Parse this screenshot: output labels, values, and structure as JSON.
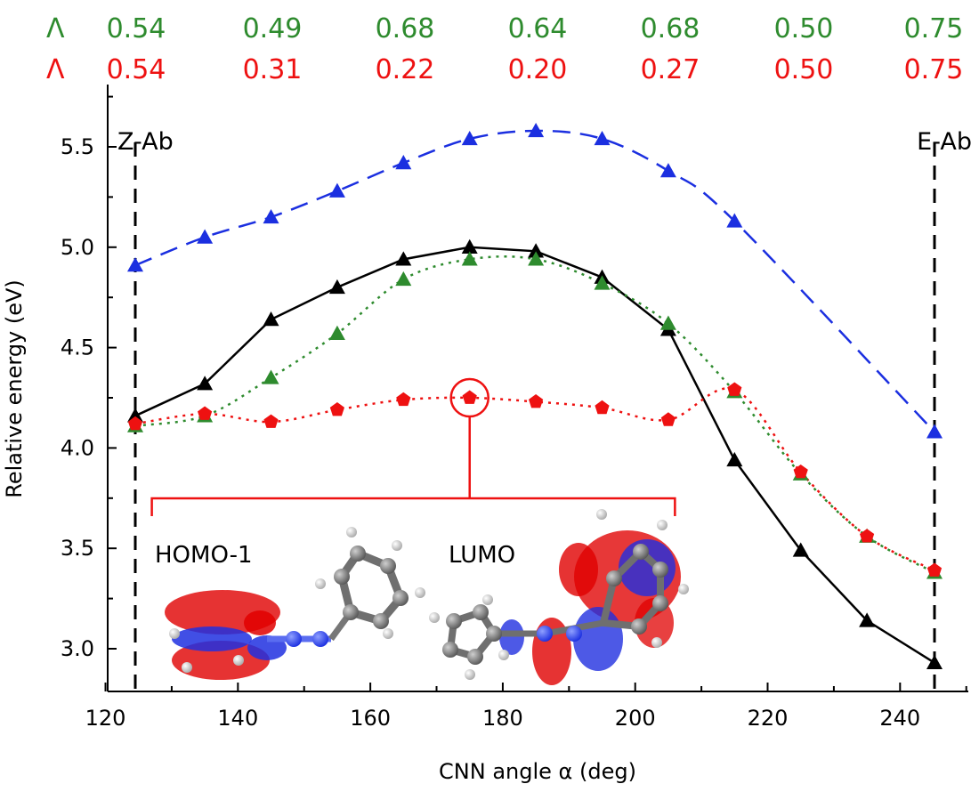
{
  "chart_data": {
    "type": "line",
    "xlabel": "CNN angle α (deg)",
    "ylabel": "Relative energy (eV)",
    "xlim": [
      120,
      250
    ],
    "ylim": [
      2.8,
      5.75
    ],
    "xticks": [
      120,
      140,
      160,
      180,
      200,
      220,
      240
    ],
    "yticks": [
      3.0,
      3.5,
      4.0,
      4.5,
      5.0,
      5.5
    ],
    "x_minor_step": 10,
    "y_minor_step": 0.25,
    "vlines": [
      {
        "x": 124.5,
        "label": "Z-Ab"
      },
      {
        "x": 245.2,
        "label": "E-Ab"
      }
    ],
    "lambda_rows": [
      {
        "symbol": "Λ",
        "color": "#2e8b2e",
        "values": [
          "0.54",
          "0.49",
          "0.68",
          "0.64",
          "0.68",
          "0.50",
          "0.75"
        ]
      },
      {
        "symbol": "Λ",
        "color": "#ee1111",
        "values": [
          "0.54",
          "0.31",
          "0.22",
          "0.20",
          "0.27",
          "0.50",
          "0.75"
        ]
      }
    ],
    "series": [
      {
        "name": "blue",
        "color": "#1b2fe0",
        "marker": "triangle",
        "linestyle": "dashed",
        "x": [
          124.5,
          135,
          145,
          155,
          165,
          175,
          185,
          195,
          205,
          215,
          245.2
        ],
        "y": [
          4.91,
          5.05,
          5.15,
          5.28,
          5.42,
          5.54,
          5.58,
          5.54,
          5.38,
          5.13,
          4.08
        ]
      },
      {
        "name": "black",
        "color": "#000000",
        "marker": "triangle",
        "linestyle": "solid",
        "x": [
          124.5,
          135,
          145,
          155,
          165,
          175,
          185,
          195,
          205,
          215,
          225,
          235,
          245.2
        ],
        "y": [
          4.16,
          4.32,
          4.64,
          4.8,
          4.94,
          5.0,
          4.98,
          4.85,
          4.59,
          3.94,
          3.49,
          3.14,
          2.93
        ]
      },
      {
        "name": "green",
        "color": "#2e8b2e",
        "marker": "triangle",
        "linestyle": "dotted",
        "x": [
          124.5,
          135,
          145,
          155,
          165,
          175,
          185,
          195,
          205,
          215,
          225,
          235,
          245.2
        ],
        "y": [
          4.11,
          4.16,
          4.35,
          4.57,
          4.84,
          4.94,
          4.94,
          4.82,
          4.62,
          4.28,
          3.87,
          3.56,
          3.38
        ]
      },
      {
        "name": "red",
        "color": "#ee1111",
        "marker": "pentagon",
        "linestyle": "dotted",
        "x": [
          124.5,
          135,
          145,
          155,
          165,
          175,
          185,
          195,
          205,
          215,
          225,
          235,
          245.2
        ],
        "y": [
          4.12,
          4.17,
          4.13,
          4.19,
          4.24,
          4.25,
          4.23,
          4.2,
          4.14,
          4.29,
          3.88,
          3.56,
          3.39
        ]
      }
    ],
    "highlight": {
      "x": 175,
      "y": 4.25
    },
    "inset_bracket": {
      "x_from": 127,
      "x_to": 206
    },
    "annotations": [
      "HOMO-1",
      "LUMO"
    ]
  }
}
